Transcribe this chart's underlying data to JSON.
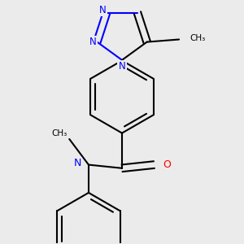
{
  "bg_color": "#ebebeb",
  "bond_color": "#000000",
  "n_color": "#0000ff",
  "o_color": "#ff0000",
  "line_width": 1.5,
  "figsize": [
    3.0,
    3.0
  ],
  "dpi": 100,
  "xlim": [
    -1.8,
    1.8
  ],
  "ylim": [
    -2.6,
    2.2
  ]
}
